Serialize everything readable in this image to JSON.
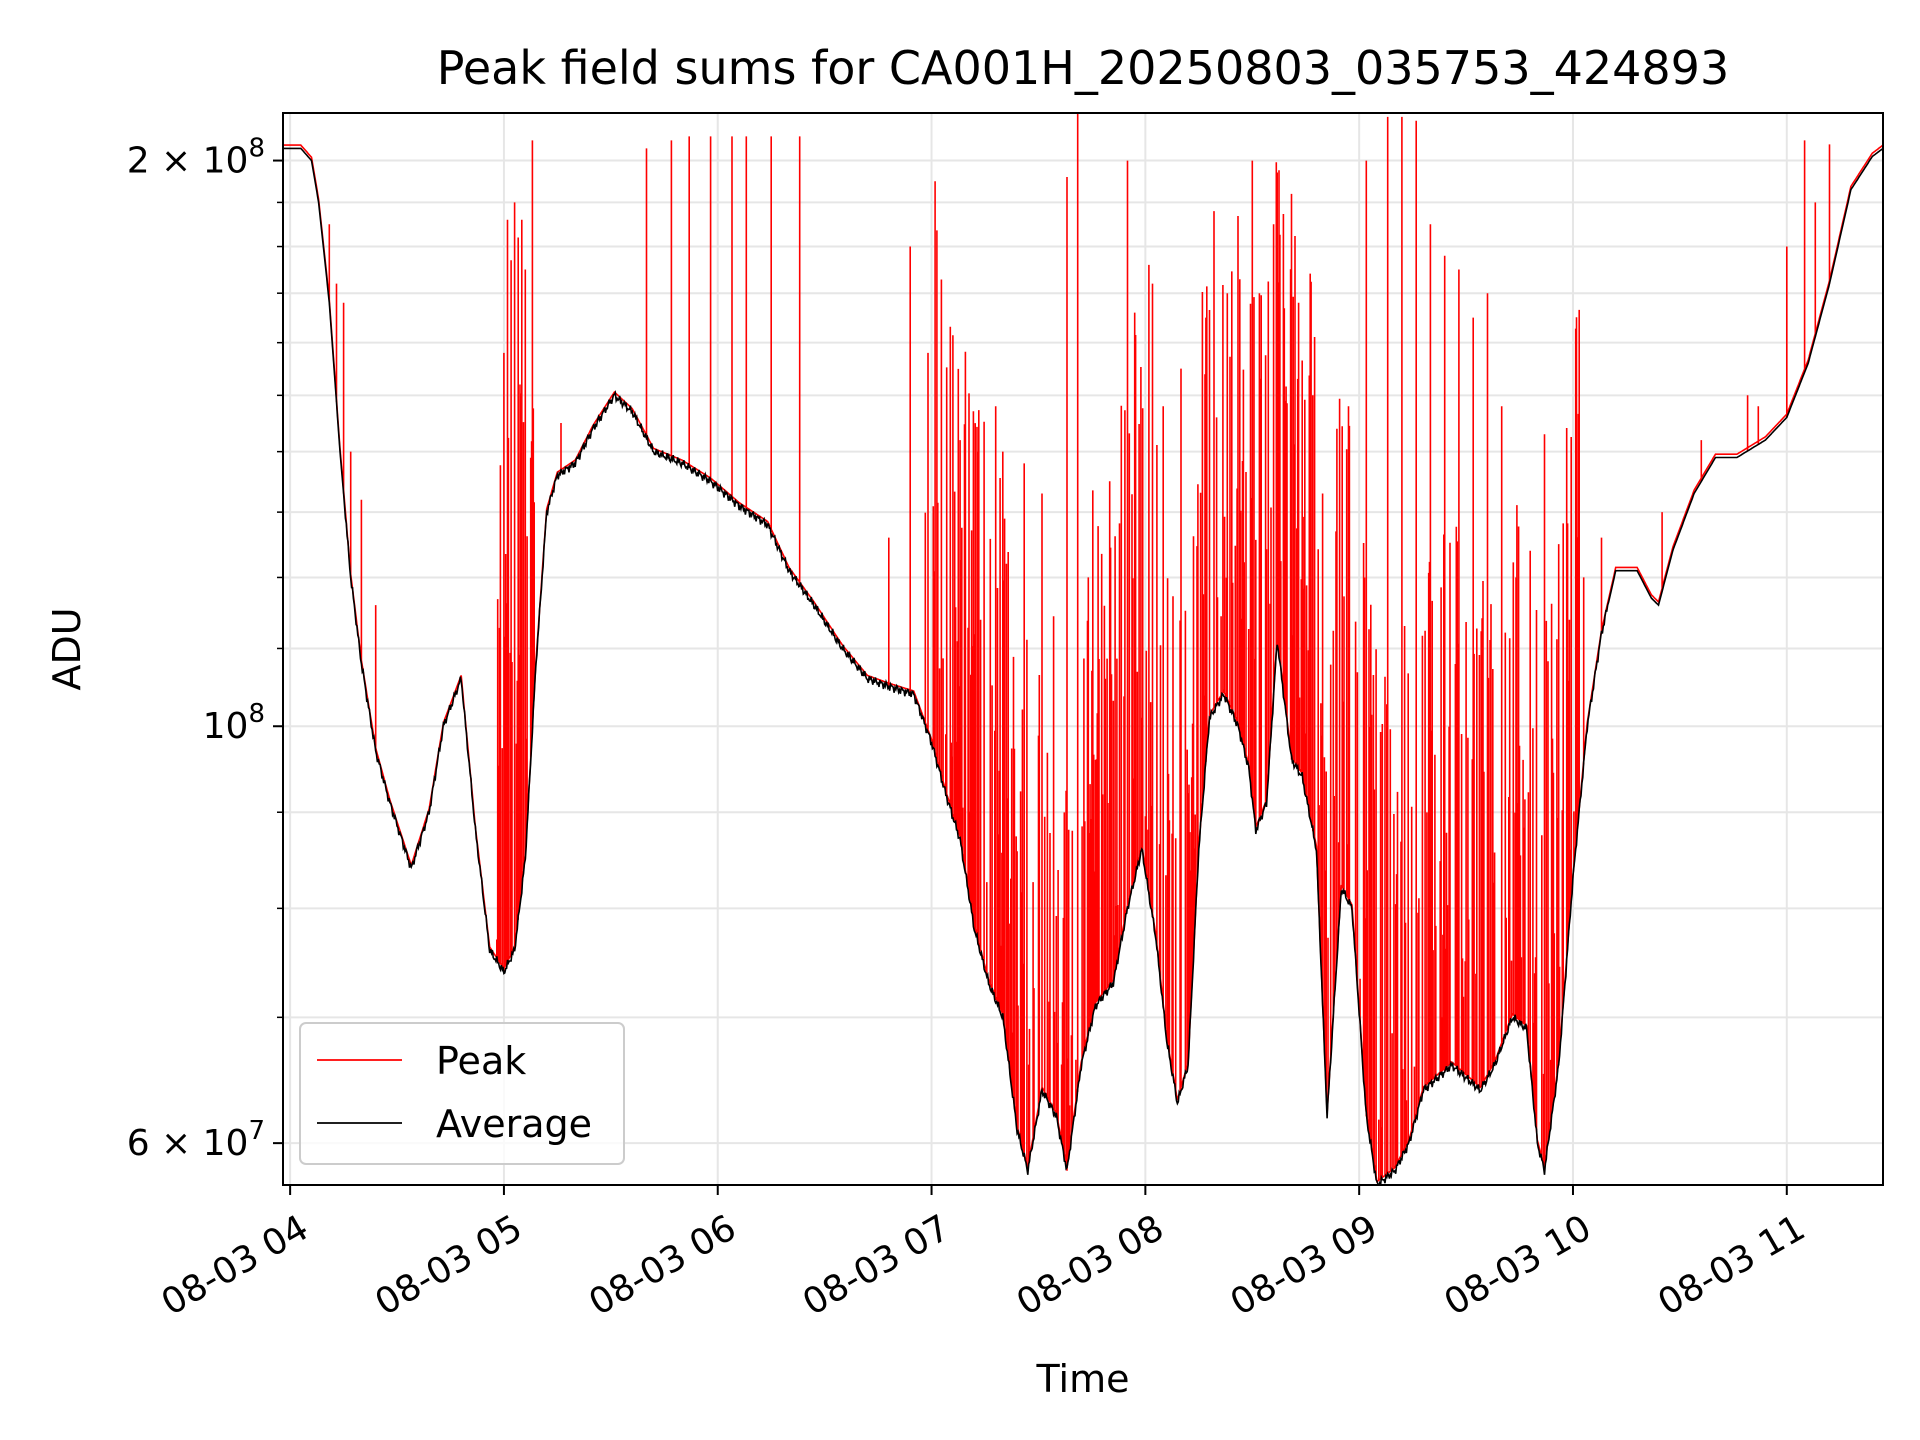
{
  "chart_data": {
    "type": "line",
    "title": "Peak field sums for CA001H_20250803_035753_424893",
    "xlabel": "Time",
    "ylabel": "ADU",
    "yscale": "log",
    "grid": true,
    "legend_position": "lower-left",
    "x_ticks": [
      "08-03 04",
      "08-03 05",
      "08-03 06",
      "08-03 07",
      "08-03 08",
      "08-03 09",
      "08-03 10",
      "08-03 11"
    ],
    "y_tick_values": [
      60000000,
      100000000,
      200000000
    ],
    "y_tick_labels": [
      {
        "mantissa": "6",
        "times": " × ",
        "base": "10",
        "exp": "7"
      },
      {
        "mantissa": "",
        "times": "",
        "base": "10",
        "exp": "8"
      },
      {
        "mantissa": "2",
        "times": " × ",
        "base": "10",
        "exp": "8"
      }
    ],
    "xlim": [
      "2025-08-03 03:58",
      "2025-08-03 11:27"
    ],
    "ylim": [
      57000000,
      212000000
    ],
    "series": [
      {
        "name": "Average",
        "color": "#000000",
        "points": [
          [
            "2025-08-03 03:58",
            203000000
          ],
          [
            "2025-08-03 04:03",
            203000000
          ],
          [
            "2025-08-03 04:06",
            200000000
          ],
          [
            "2025-08-03 04:08",
            190000000
          ],
          [
            "2025-08-03 04:11",
            168000000
          ],
          [
            "2025-08-03 04:14",
            140000000
          ],
          [
            "2025-08-03 04:17",
            120000000
          ],
          [
            "2025-08-03 04:20",
            108000000
          ],
          [
            "2025-08-03 04:24",
            97000000
          ],
          [
            "2025-08-03 04:28",
            91000000
          ],
          [
            "2025-08-03 04:34",
            84000000
          ],
          [
            "2025-08-03 04:39",
            90000000
          ],
          [
            "2025-08-03 04:43",
            100000000
          ],
          [
            "2025-08-03 04:48",
            106000000
          ],
          [
            "2025-08-03 04:52",
            88000000
          ],
          [
            "2025-08-03 04:56",
            76000000
          ],
          [
            "2025-08-03 05:00",
            74000000
          ],
          [
            "2025-08-03 05:03",
            76000000
          ],
          [
            "2025-08-03 05:06",
            85000000
          ],
          [
            "2025-08-03 05:09",
            108000000
          ],
          [
            "2025-08-03 05:12",
            130000000
          ],
          [
            "2025-08-03 05:15",
            136000000
          ],
          [
            "2025-08-03 05:20",
            138000000
          ],
          [
            "2025-08-03 05:25",
            144000000
          ],
          [
            "2025-08-03 05:31",
            150000000
          ],
          [
            "2025-08-03 05:36",
            147000000
          ],
          [
            "2025-08-03 05:42",
            140000000
          ],
          [
            "2025-08-03 05:50",
            138000000
          ],
          [
            "2025-08-03 05:58",
            135000000
          ],
          [
            "2025-08-03 06:06",
            131000000
          ],
          [
            "2025-08-03 06:14",
            128000000
          ],
          [
            "2025-08-03 06:20",
            121000000
          ],
          [
            "2025-08-03 06:27",
            116000000
          ],
          [
            "2025-08-03 06:35",
            110000000
          ],
          [
            "2025-08-03 06:42",
            106000000
          ],
          [
            "2025-08-03 06:48",
            105000000
          ],
          [
            "2025-08-03 06:55",
            104000000
          ],
          [
            "2025-08-03 07:00",
            98000000
          ],
          [
            "2025-08-03 07:04",
            92000000
          ],
          [
            "2025-08-03 07:08",
            87000000
          ],
          [
            "2025-08-03 07:12",
            78000000
          ],
          [
            "2025-08-03 07:16",
            73000000
          ],
          [
            "2025-08-03 07:20",
            70000000
          ],
          [
            "2025-08-03 07:24",
            61000000
          ],
          [
            "2025-08-03 07:27",
            58000000
          ],
          [
            "2025-08-03 07:31",
            64000000
          ],
          [
            "2025-08-03 07:35",
            62000000
          ],
          [
            "2025-08-03 07:38",
            58000000
          ],
          [
            "2025-08-03 07:42",
            66000000
          ],
          [
            "2025-08-03 07:46",
            71000000
          ],
          [
            "2025-08-03 07:51",
            73000000
          ],
          [
            "2025-08-03 07:55",
            80000000
          ],
          [
            "2025-08-03 07:59",
            86000000
          ],
          [
            "2025-08-03 08:03",
            77000000
          ],
          [
            "2025-08-03 08:06",
            68000000
          ],
          [
            "2025-08-03 08:09",
            63000000
          ],
          [
            "2025-08-03 08:12",
            66000000
          ],
          [
            "2025-08-03 08:15",
            86000000
          ],
          [
            "2025-08-03 08:18",
            101000000
          ],
          [
            "2025-08-03 08:22",
            104000000
          ],
          [
            "2025-08-03 08:26",
            100000000
          ],
          [
            "2025-08-03 08:29",
            95000000
          ],
          [
            "2025-08-03 08:31",
            88000000
          ],
          [
            "2025-08-03 08:34",
            91000000
          ],
          [
            "2025-08-03 08:37",
            111000000
          ],
          [
            "2025-08-03 08:41",
            96000000
          ],
          [
            "2025-08-03 08:44",
            94000000
          ],
          [
            "2025-08-03 08:48",
            86000000
          ],
          [
            "2025-08-03 08:51",
            62000000
          ],
          [
            "2025-08-03 08:55",
            82000000
          ],
          [
            "2025-08-03 08:58",
            80000000
          ],
          [
            "2025-08-03 09:02",
            62000000
          ],
          [
            "2025-08-03 09:05",
            57000000
          ],
          [
            "2025-08-03 09:10",
            58000000
          ],
          [
            "2025-08-03 09:14",
            60000000
          ],
          [
            "2025-08-03 09:18",
            64000000
          ],
          [
            "2025-08-03 09:22",
            65000000
          ],
          [
            "2025-08-03 09:26",
            66000000
          ],
          [
            "2025-08-03 09:30",
            65000000
          ],
          [
            "2025-08-03 09:34",
            64000000
          ],
          [
            "2025-08-03 09:38",
            66000000
          ],
          [
            "2025-08-03 09:43",
            70000000
          ],
          [
            "2025-08-03 09:47",
            69000000
          ],
          [
            "2025-08-03 09:50",
            60000000
          ],
          [
            "2025-08-03 09:52",
            58000000
          ],
          [
            "2025-08-03 09:56",
            66000000
          ],
          [
            "2025-08-03 10:00",
            83000000
          ],
          [
            "2025-08-03 10:04",
            100000000
          ],
          [
            "2025-08-03 10:08",
            112000000
          ],
          [
            "2025-08-03 10:12",
            121000000
          ],
          [
            "2025-08-03 10:18",
            121000000
          ],
          [
            "2025-08-03 10:22",
            117000000
          ],
          [
            "2025-08-03 10:24",
            116000000
          ],
          [
            "2025-08-03 10:28",
            124000000
          ],
          [
            "2025-08-03 10:34",
            133000000
          ],
          [
            "2025-08-03 10:40",
            139000000
          ],
          [
            "2025-08-03 10:46",
            139000000
          ],
          [
            "2025-08-03 10:54",
            142000000
          ],
          [
            "2025-08-03 11:00",
            146000000
          ],
          [
            "2025-08-03 11:06",
            156000000
          ],
          [
            "2025-08-03 11:12",
            172000000
          ],
          [
            "2025-08-03 11:18",
            193000000
          ],
          [
            "2025-08-03 11:24",
            201000000
          ],
          [
            "2025-08-03 11:27",
            203000000
          ]
        ]
      },
      {
        "name": "Peak",
        "color": "#ff0000",
        "note_baseline": "follows Average",
        "spikes": [
          [
            "2025-08-03 04:11",
            185000000
          ],
          [
            "2025-08-03 04:13",
            172000000
          ],
          [
            "2025-08-03 04:15",
            168000000
          ],
          [
            "2025-08-03 04:17",
            140000000
          ],
          [
            "2025-08-03 04:20",
            132000000
          ],
          [
            "2025-08-03 04:24",
            116000000
          ],
          [
            "2025-08-03 04:58",
            77000000
          ],
          [
            "2025-08-03 05:00",
            158000000
          ],
          [
            "2025-08-03 05:01",
            186000000
          ],
          [
            "2025-08-03 05:02",
            177000000
          ],
          [
            "2025-08-03 05:03",
            190000000
          ],
          [
            "2025-08-03 05:04",
            182000000
          ],
          [
            "2025-08-03 05:05",
            186000000
          ],
          [
            "2025-08-03 05:06",
            175000000
          ],
          [
            "2025-08-03 05:08",
            205000000
          ],
          [
            "2025-08-03 05:16",
            145000000
          ],
          [
            "2025-08-03 05:40",
            203000000
          ],
          [
            "2025-08-03 05:47",
            205000000
          ],
          [
            "2025-08-03 05:52",
            206000000
          ],
          [
            "2025-08-03 05:58",
            206000000
          ],
          [
            "2025-08-03 06:04",
            206000000
          ],
          [
            "2025-08-03 06:08",
            206000000
          ],
          [
            "2025-08-03 06:15",
            206000000
          ],
          [
            "2025-08-03 06:23",
            206000000
          ],
          [
            "2025-08-03 06:48",
            126000000
          ],
          [
            "2025-08-03 06:54",
            180000000
          ],
          [
            "2025-08-03 06:59",
            158000000
          ],
          [
            "2025-08-03 07:01",
            195000000
          ],
          [
            "2025-08-03 07:06",
            136000000
          ],
          [
            "2025-08-03 07:08",
            142000000
          ],
          [
            "2025-08-03 07:13",
            140000000
          ],
          [
            "2025-08-03 07:18",
            148000000
          ],
          [
            "2025-08-03 07:20",
            140000000
          ],
          [
            "2025-08-03 07:26",
            138000000
          ],
          [
            "2025-08-03 07:31",
            133000000
          ],
          [
            "2025-08-03 07:38",
            196000000
          ],
          [
            "2025-08-03 07:41",
            212000000
          ],
          [
            "2025-08-03 07:44",
            120000000
          ],
          [
            "2025-08-03 07:50",
            135000000
          ],
          [
            "2025-08-03 07:55",
            200000000
          ],
          [
            "2025-08-03 07:57",
            166000000
          ],
          [
            "2025-08-03 08:01",
            176000000
          ],
          [
            "2025-08-03 08:02",
            172000000
          ],
          [
            "2025-08-03 08:05",
            148000000
          ],
          [
            "2025-08-03 08:10",
            155000000
          ],
          [
            "2025-08-03 08:17",
            165000000
          ],
          [
            "2025-08-03 08:20",
            146000000
          ],
          [
            "2025-08-03 08:23",
            170000000
          ],
          [
            "2025-08-03 08:26",
            152000000
          ],
          [
            "2025-08-03 08:30",
            200000000
          ],
          [
            "2025-08-03 08:32",
            170000000
          ],
          [
            "2025-08-03 08:36",
            185000000
          ],
          [
            "2025-08-03 08:41",
            192000000
          ],
          [
            "2025-08-03 08:43",
            168000000
          ],
          [
            "2025-08-03 08:47",
            150000000
          ],
          [
            "2025-08-03 08:52",
            86000000
          ],
          [
            "2025-08-03 08:57",
            85000000
          ],
          [
            "2025-08-03 09:02",
            200000000
          ],
          [
            "2025-08-03 09:08",
            211000000
          ],
          [
            "2025-08-03 09:12",
            211000000
          ],
          [
            "2025-08-03 09:16",
            210000000
          ],
          [
            "2025-08-03 09:20",
            185000000
          ],
          [
            "2025-08-03 09:24",
            178000000
          ],
          [
            "2025-08-03 09:28",
            175000000
          ],
          [
            "2025-08-03 09:32",
            165000000
          ],
          [
            "2025-08-03 09:36",
            170000000
          ],
          [
            "2025-08-03 09:40",
            148000000
          ],
          [
            "2025-08-03 09:44",
            120000000
          ],
          [
            "2025-08-03 09:48",
            124000000
          ],
          [
            "2025-08-03 09:52",
            143000000
          ],
          [
            "2025-08-03 09:56",
            125000000
          ],
          [
            "2025-08-03 10:03",
            120000000
          ],
          [
            "2025-08-03 10:08",
            126000000
          ],
          [
            "2025-08-03 10:25",
            130000000
          ],
          [
            "2025-08-03 10:36",
            142000000
          ],
          [
            "2025-08-03 10:49",
            150000000
          ],
          [
            "2025-08-03 10:52",
            148000000
          ],
          [
            "2025-08-03 11:00",
            180000000
          ],
          [
            "2025-08-03 11:05",
            205000000
          ],
          [
            "2025-08-03 11:08",
            190000000
          ],
          [
            "2025-08-03 11:12",
            204000000
          ]
        ]
      }
    ]
  }
}
